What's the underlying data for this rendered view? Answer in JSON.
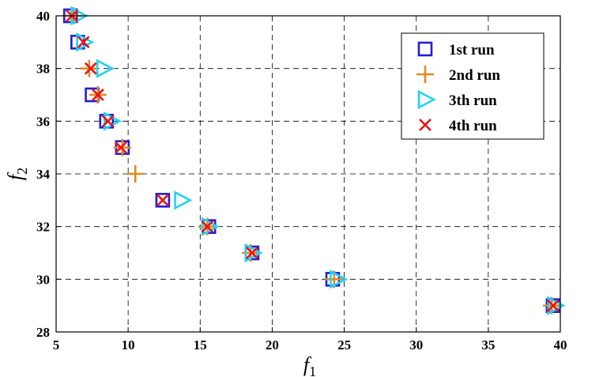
{
  "chart_data": {
    "type": "scatter",
    "title": "",
    "xlabel": "f",
    "xlabel_sub": "1",
    "ylabel": "f",
    "ylabel_sub": "2",
    "xlim": [
      5,
      40
    ],
    "ylim": [
      28,
      40
    ],
    "xticks": [
      5,
      10,
      15,
      20,
      25,
      30,
      35,
      40
    ],
    "yticks": [
      28,
      30,
      32,
      34,
      36,
      38,
      40
    ],
    "grid": true,
    "legend_position": "top-right",
    "series": [
      {
        "name": "1st run",
        "marker": "square",
        "color": "#1f1fd6",
        "points": [
          [
            6.0,
            40
          ],
          [
            6.5,
            39
          ],
          [
            7.5,
            37
          ],
          [
            8.5,
            36
          ],
          [
            9.6,
            35
          ],
          [
            12.4,
            33
          ],
          [
            15.6,
            32
          ],
          [
            18.6,
            31
          ],
          [
            24.2,
            30
          ],
          [
            39.5,
            29
          ]
        ]
      },
      {
        "name": "2nd run",
        "marker": "plus",
        "color": "#e08a1e",
        "points": [
          [
            6.2,
            40
          ],
          [
            7.3,
            38
          ],
          [
            7.9,
            37
          ],
          [
            9.6,
            35
          ],
          [
            10.5,
            34
          ],
          [
            15.5,
            32
          ],
          [
            18.5,
            31
          ],
          [
            24.3,
            30
          ],
          [
            39.4,
            29
          ]
        ]
      },
      {
        "name": "3th run",
        "marker": "triangle-right",
        "color": "#22d3ee",
        "points": [
          [
            6.5,
            40
          ],
          [
            6.9,
            39
          ],
          [
            8.3,
            38
          ],
          [
            8.8,
            36
          ],
          [
            13.7,
            33
          ],
          [
            15.6,
            32
          ],
          [
            18.6,
            31
          ],
          [
            24.5,
            30
          ],
          [
            39.6,
            29
          ]
        ]
      },
      {
        "name": "4th run",
        "marker": "x",
        "color": "#ee1111",
        "points": [
          [
            6.1,
            40
          ],
          [
            6.9,
            39
          ],
          [
            7.4,
            38
          ],
          [
            7.9,
            37
          ],
          [
            8.6,
            36
          ],
          [
            9.5,
            35
          ],
          [
            12.4,
            33
          ],
          [
            15.5,
            32
          ],
          [
            18.6,
            31
          ],
          [
            39.5,
            29
          ]
        ]
      }
    ]
  }
}
